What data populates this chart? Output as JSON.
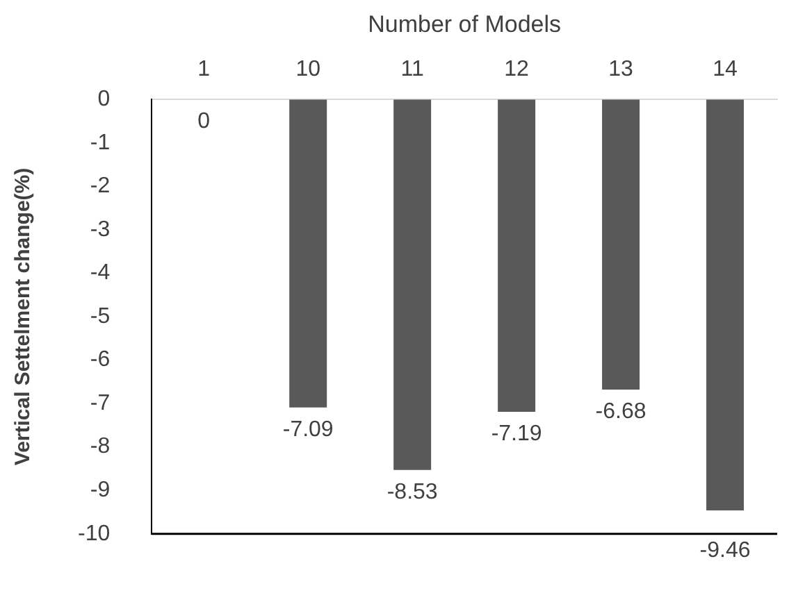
{
  "chart_data": {
    "type": "bar",
    "xlabel": "Number of Models",
    "ylabel": "Vertical Settelment change(%)",
    "categories": [
      "1",
      "10",
      "11",
      "12",
      "13",
      "14"
    ],
    "values": [
      0,
      -7.09,
      -8.53,
      -7.19,
      -6.68,
      -9.46
    ],
    "color": "#595959",
    "ylim": [
      -10,
      0
    ],
    "yticks": [
      0,
      -1,
      -2,
      -3,
      -4,
      -5,
      -6,
      -7,
      -8,
      -9,
      -10
    ],
    "grid": false,
    "legend": false,
    "data_labels": true
  }
}
